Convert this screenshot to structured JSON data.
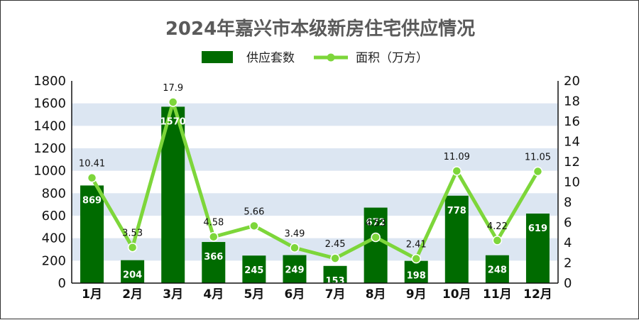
{
  "chart_data": {
    "type": "bar",
    "title": "2024年嘉兴市本级新房住宅供应情况",
    "categories": [
      "1月",
      "2月",
      "3月",
      "4月",
      "5月",
      "6月",
      "7月",
      "8月",
      "9月",
      "10月",
      "11月",
      "12月"
    ],
    "series": [
      {
        "name": "供应套数",
        "type": "bar",
        "axis": "left",
        "color": "#006b00",
        "values": [
          869,
          204,
          1570,
          366,
          245,
          249,
          153,
          672,
          198,
          778,
          248,
          619
        ]
      },
      {
        "name": "面积（万方）",
        "type": "line",
        "axis": "right",
        "color": "#7dd63a",
        "values": [
          10.41,
          3.53,
          17.9,
          4.58,
          5.66,
          3.49,
          2.45,
          4.53,
          2.41,
          11.09,
          4.22,
          11.05
        ]
      }
    ],
    "y_left": {
      "min": 0,
      "max": 1800,
      "ticks": [
        "0",
        "200",
        "400",
        "600",
        "800",
        "1000",
        "1200",
        "1400",
        "1600",
        "1800"
      ]
    },
    "y_right": {
      "min": 0,
      "max": 20,
      "ticks": [
        "0",
        "2",
        "4",
        "6",
        "8",
        "10",
        "12",
        "14",
        "16",
        "18",
        "20"
      ]
    },
    "line_labels": [
      "10.41",
      "3.53",
      "17.9",
      "4.58",
      "5.66",
      "3.49",
      "2.45",
      "4.53",
      "2.41",
      "11.09",
      "4.22",
      "11.05"
    ],
    "legend_position": "top-center",
    "grid": "alternating horizontal bands",
    "band_color": "#dce6f2"
  }
}
